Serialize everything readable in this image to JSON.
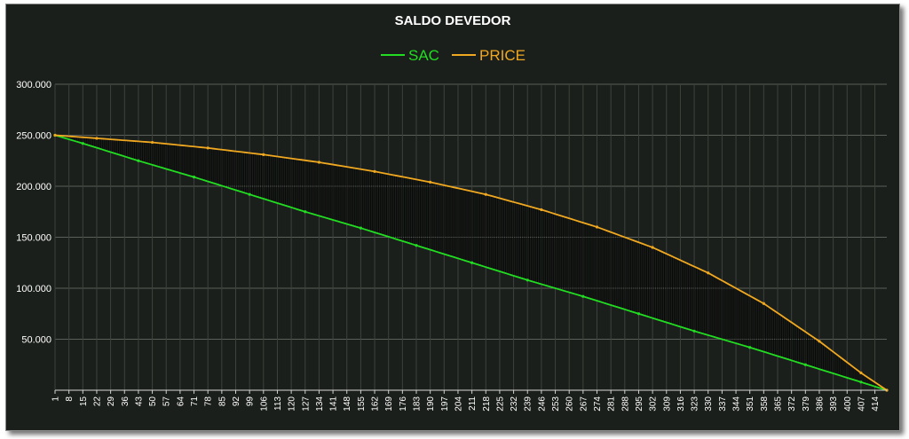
{
  "chart_data": {
    "type": "line",
    "title": "SALDO DEVEDOR",
    "xlabel": "",
    "ylabel": "",
    "legend_position": "top",
    "grid": true,
    "ylim": [
      0,
      300000
    ],
    "xlim": [
      1,
      420
    ],
    "y_ticks": [
      "",
      "50.000",
      "100.000",
      "150.000",
      "200.000",
      "250.000",
      "300.000"
    ],
    "x_ticks": [
      "1",
      "8",
      "15",
      "22",
      "29",
      "36",
      "43",
      "50",
      "57",
      "64",
      "71",
      "78",
      "85",
      "92",
      "99",
      "106",
      "113",
      "120",
      "127",
      "134",
      "141",
      "148",
      "155",
      "162",
      "169",
      "176",
      "183",
      "190",
      "197",
      "204",
      "211",
      "218",
      "225",
      "232",
      "239",
      "246",
      "253",
      "260",
      "267",
      "274",
      "281",
      "288",
      "295",
      "302",
      "309",
      "316",
      "323",
      "330",
      "337",
      "344",
      "351",
      "358",
      "365",
      "372",
      "379",
      "386",
      "393",
      "400",
      "407",
      "414"
    ],
    "series": [
      {
        "name": "SAC",
        "color": "#22dd22",
        "x": [
          1,
          15,
          43,
          71,
          99,
          127,
          155,
          183,
          211,
          239,
          267,
          295,
          323,
          351,
          379,
          407,
          420
        ],
        "values": [
          250000,
          242000,
          225000,
          209000,
          192000,
          175000,
          159000,
          142000,
          125000,
          108000,
          92000,
          75000,
          58000,
          42000,
          25000,
          8000,
          0
        ]
      },
      {
        "name": "PRICE",
        "color": "#f0a820",
        "x": [
          1,
          22,
          50,
          78,
          106,
          134,
          162,
          190,
          218,
          246,
          274,
          302,
          330,
          358,
          386,
          407,
          420
        ],
        "values": [
          250000,
          247000,
          243000,
          237500,
          231000,
          223500,
          214500,
          204000,
          192000,
          177000,
          160000,
          140000,
          115000,
          85000,
          48000,
          17000,
          0
        ]
      }
    ]
  }
}
